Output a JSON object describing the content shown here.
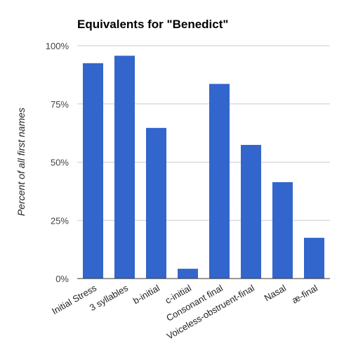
{
  "chart_data": {
    "type": "bar",
    "title": "Equivalents for \"Benedict\"",
    "xlabel": "",
    "ylabel": "Percent of all first names",
    "ylim": [
      0,
      100
    ],
    "yticks": [
      "0%",
      "25%",
      "50%",
      "75%",
      "100%"
    ],
    "ytick_values": [
      0,
      25,
      50,
      75,
      100
    ],
    "grid": true,
    "legend": "none",
    "bar_color": "#3366cc",
    "categories": [
      "Initial Stress",
      "3 syllables",
      "b-initial",
      "c-initial",
      "Consonant final",
      "Voiceless-obstruent-final",
      "Nasal",
      "æ-final"
    ],
    "values": [
      92.5,
      95.7,
      64.7,
      4.2,
      83.6,
      57.4,
      41.4,
      17.5
    ]
  }
}
